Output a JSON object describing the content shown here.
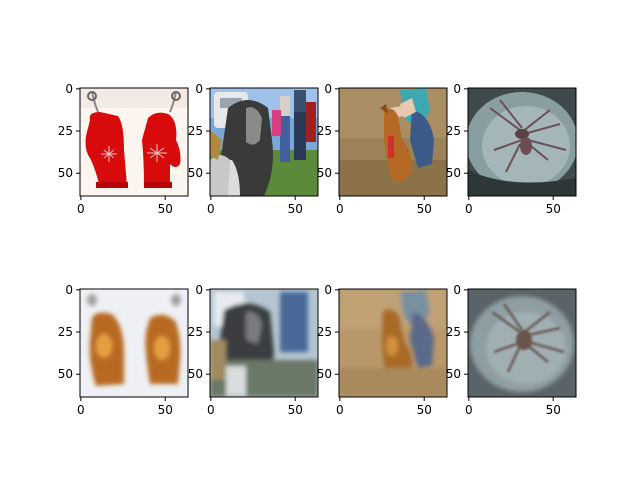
{
  "figure": {
    "rows": [
      {
        "panels": [
          {
            "name": "mittens-original"
          },
          {
            "name": "dog-crowd-original"
          },
          {
            "name": "dog-person-original"
          },
          {
            "name": "spider-original"
          }
        ]
      },
      {
        "panels": [
          {
            "name": "mittens-reconstruction"
          },
          {
            "name": "dog-crowd-reconstruction"
          },
          {
            "name": "dog-person-reconstruction"
          },
          {
            "name": "spider-reconstruction"
          }
        ]
      }
    ],
    "x_ticks": [
      "0",
      "50"
    ],
    "y_ticks": [
      "0",
      "25",
      "50"
    ],
    "image_size": [
      64,
      64
    ]
  }
}
